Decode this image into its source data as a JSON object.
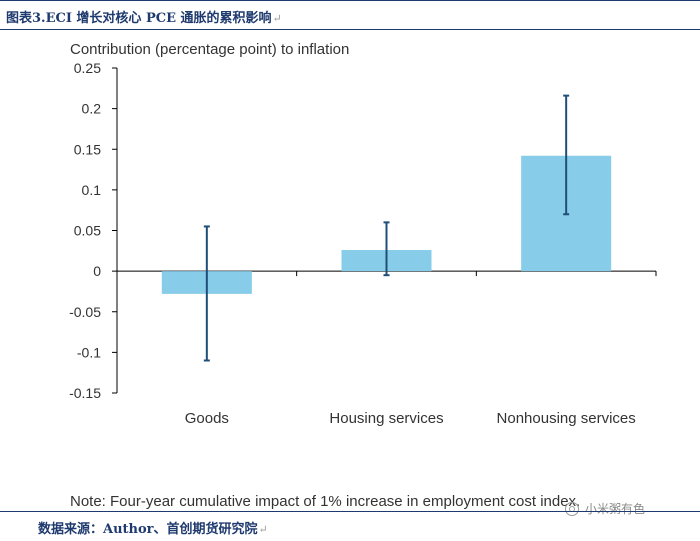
{
  "caption": {
    "title": "图表3.ECI 增长对核心 PCE 通胀的累积影响"
  },
  "source": {
    "text": "数据来源：Author、首创期货研究院"
  },
  "watermark": {
    "text": "小米粥有色"
  },
  "colors": {
    "bar": "#87cce8",
    "error": "#1f4e79",
    "axis": "#000000",
    "caption": "#1f3a6e"
  },
  "chart_data": {
    "type": "bar",
    "title": "Contribution (percentage point) to inflation",
    "categories": [
      "Goods",
      "Housing services",
      "Nonhousing services"
    ],
    "values": [
      -0.028,
      0.026,
      0.142
    ],
    "error_low": [
      -0.11,
      -0.005,
      0.07
    ],
    "error_high": [
      0.055,
      0.06,
      0.216
    ],
    "ylim": [
      -0.15,
      0.25
    ],
    "yticks": [
      0.25,
      0.2,
      0.15,
      0.1,
      0.05,
      0,
      -0.05,
      -0.1,
      -0.15
    ],
    "ytick_labels": [
      "0.25",
      "0.2",
      "0.15",
      "0.1",
      "0.05",
      "0",
      "-0.05",
      "-0.1",
      "-0.15"
    ],
    "xlabel": "",
    "ylabel": "",
    "note": "Note: Four-year cumulative impact of 1% increase in employment cost index."
  }
}
